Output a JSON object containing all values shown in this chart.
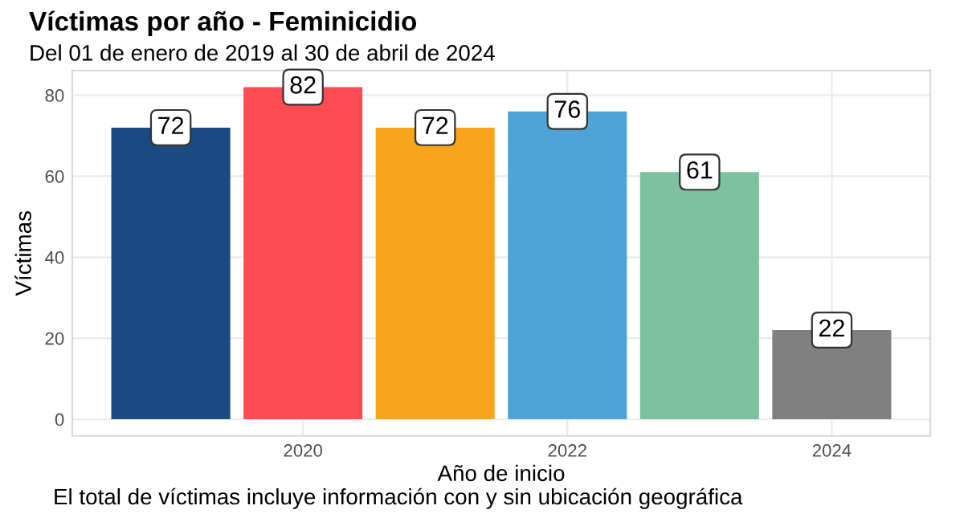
{
  "chart_data": {
    "type": "bar",
    "title": "Víctimas por año - Feminicidio",
    "subtitle": "Del 01 de enero de 2019 al 30 de abril de 2024",
    "xlabel": "Año de inicio",
    "ylabel": "Víctimas",
    "x": [
      2019,
      2020,
      2021,
      2022,
      2023,
      2024
    ],
    "values": [
      72,
      82,
      72,
      76,
      61,
      22
    ],
    "colors": [
      "#1a4a80",
      "#fc4c51",
      "#f9a51b",
      "#4fa3d9",
      "#7dc29e",
      "#808080"
    ],
    "xlim": [
      2018.255,
      2024.745
    ],
    "xticks": [
      2020,
      2022,
      2024
    ],
    "ylim": [
      -4.1,
      86.1
    ],
    "yticks": [
      0,
      20,
      40,
      60,
      80
    ],
    "grid": true,
    "data_labels": true,
    "annotations": [
      "El total de víctimas incluye información con y sin ubicación geográfica"
    ]
  }
}
